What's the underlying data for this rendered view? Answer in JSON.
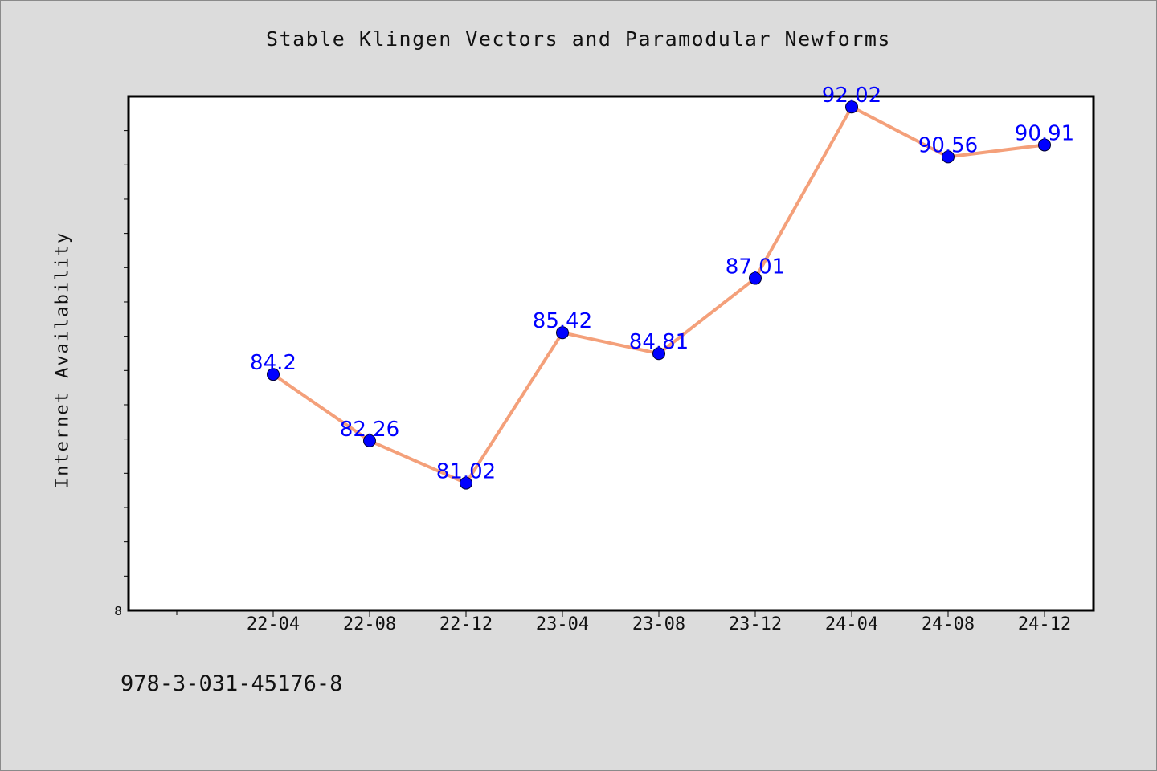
{
  "chart_data": {
    "type": "line",
    "title": "Stable Klingen Vectors and Paramodular Newforms",
    "xlabel": "",
    "ylabel": "Internet Availability",
    "categories": [
      "22-04",
      "22-08",
      "22-12",
      "23-04",
      "23-08",
      "23-12",
      "24-04",
      "24-08",
      "24-12"
    ],
    "series": [
      {
        "values": [
          84.2,
          82.26,
          81.02,
          85.42,
          84.81,
          87.01,
          92.02,
          90.56,
          90.91
        ],
        "data_labels": [
          "84.2",
          "82.26",
          "81.02",
          "85.42",
          "84.81",
          "87.01",
          "92.02",
          "90.56",
          "90.91"
        ],
        "line_color": "#f4a07a",
        "marker_color": "#0000ff"
      }
    ],
    "y_axis_min_label": "8",
    "ylim": [
      77.3,
      92.33
    ],
    "grid": false,
    "legend": "none"
  },
  "footer_text": "978-3-031-45176-8",
  "colors": {
    "background": "#dcdcdc",
    "plot_background": "#ffffff",
    "line": "#f4a07a",
    "marker": "#0000ff",
    "data_label": "#0000ff"
  }
}
